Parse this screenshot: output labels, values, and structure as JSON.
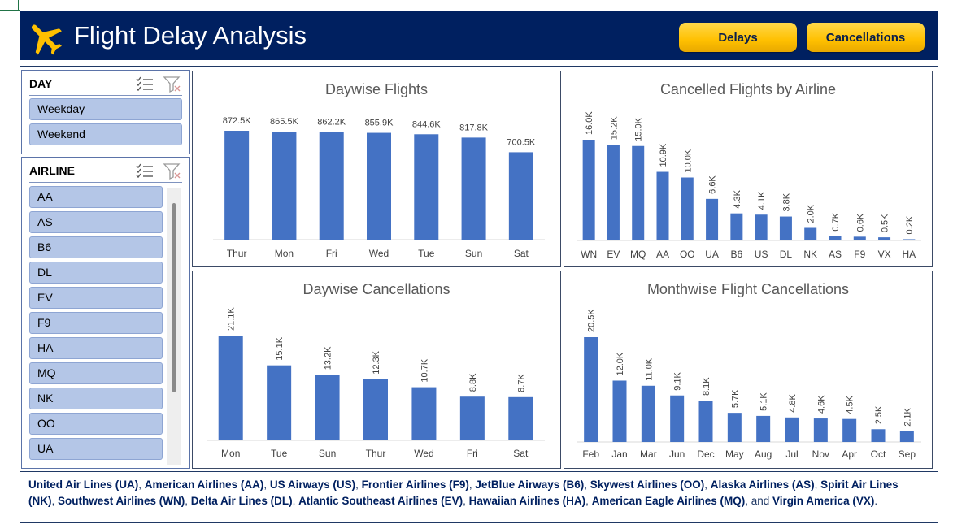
{
  "header": {
    "title": "Flight Delay Analysis",
    "logo_icon": "airplane-icon",
    "buttons": {
      "delays": "Delays",
      "cancellations": "Cancellations"
    },
    "colors": {
      "banner": "#002060",
      "button": "#ffc000",
      "plane": "#ffc000"
    }
  },
  "slicers": {
    "day": {
      "title": "DAY",
      "items": [
        "Weekday",
        "Weekend"
      ]
    },
    "airline": {
      "title": "AIRLINE",
      "items": [
        "AA",
        "AS",
        "B6",
        "DL",
        "EV",
        "F9",
        "HA",
        "MQ",
        "NK",
        "OO",
        "UA"
      ]
    }
  },
  "chart_data": [
    {
      "type": "bar",
      "title": "Daywise Flights",
      "categories": [
        "Thur",
        "Mon",
        "Fri",
        "Wed",
        "Tue",
        "Sun",
        "Sat"
      ],
      "values": [
        872.5,
        865.5,
        862.2,
        855.9,
        844.6,
        817.8,
        700.5
      ],
      "labels": [
        "872.5K",
        "865.5K",
        "862.2K",
        "855.9K",
        "844.6K",
        "817.8K",
        "700.5K"
      ],
      "ylim": [
        0,
        872.5
      ],
      "label_orientation": "horizontal",
      "bar_color": "#4472c4"
    },
    {
      "type": "bar",
      "title": "Cancelled Flights by Airline",
      "categories": [
        "WN",
        "EV",
        "MQ",
        "AA",
        "OO",
        "UA",
        "B6",
        "US",
        "DL",
        "NK",
        "AS",
        "F9",
        "VX",
        "HA"
      ],
      "values": [
        16.0,
        15.2,
        15.0,
        10.9,
        10.0,
        6.6,
        4.3,
        4.1,
        3.8,
        2.0,
        0.7,
        0.6,
        0.5,
        0.2
      ],
      "labels": [
        "16.0K",
        "15.2K",
        "15.0K",
        "10.9K",
        "10.0K",
        "6.6K",
        "4.3K",
        "4.1K",
        "3.8K",
        "2.0K",
        "0.7K",
        "0.6K",
        "0.5K",
        "0.2K"
      ],
      "ylim": [
        0,
        16.0
      ],
      "label_orientation": "vertical",
      "bar_color": "#4472c4"
    },
    {
      "type": "bar",
      "title": "Daywise Cancellations",
      "categories": [
        "Mon",
        "Tue",
        "Sun",
        "Thur",
        "Wed",
        "Fri",
        "Sat"
      ],
      "values": [
        21.1,
        15.1,
        13.2,
        12.3,
        10.7,
        8.8,
        8.7
      ],
      "labels": [
        "21.1K",
        "15.1K",
        "13.2K",
        "12.3K",
        "10.7K",
        "8.8K",
        "8.7K"
      ],
      "ylim": [
        0,
        21.1
      ],
      "label_orientation": "vertical",
      "bar_color": "#4472c4"
    },
    {
      "type": "bar",
      "title": "Monthwise Flight Cancellations",
      "categories": [
        "Feb",
        "Jan",
        "Mar",
        "Jun",
        "Dec",
        "May",
        "Aug",
        "Jul",
        "Nov",
        "Apr",
        "Oct",
        "Sep"
      ],
      "values": [
        20.5,
        12.0,
        11.0,
        9.1,
        8.1,
        5.7,
        5.1,
        4.8,
        4.6,
        4.5,
        2.5,
        2.1
      ],
      "labels": [
        "20.5K",
        "12.0K",
        "11.0K",
        "9.1K",
        "8.1K",
        "5.7K",
        "5.1K",
        "4.8K",
        "4.6K",
        "4.5K",
        "2.5K",
        "2.1K"
      ],
      "ylim": [
        0,
        20.5
      ],
      "label_orientation": "vertical",
      "bar_color": "#4472c4"
    }
  ],
  "footer": {
    "segments": [
      {
        "t": "United Air Lines (UA)",
        "b": true
      },
      {
        "t": ", ",
        "b": false
      },
      {
        "t": "American Airlines (AA)",
        "b": true
      },
      {
        "t": ", ",
        "b": false
      },
      {
        "t": "US Airways (US)",
        "b": true
      },
      {
        "t": ", ",
        "b": false
      },
      {
        "t": "Frontier Airlines (F9)",
        "b": true
      },
      {
        "t": ", ",
        "b": false
      },
      {
        "t": "JetBlue Airways (B6)",
        "b": true
      },
      {
        "t": ", ",
        "b": false
      },
      {
        "t": "Skywest Airlines (OO)",
        "b": true
      },
      {
        "t": ", ",
        "b": false
      },
      {
        "t": "Alaska Airlines (AS)",
        "b": true
      },
      {
        "t": ", ",
        "b": false
      },
      {
        "t": "Spirit Air Lines (NK)",
        "b": true
      },
      {
        "t": ", ",
        "b": false
      },
      {
        "t": "Southwest Airlines (WN)",
        "b": true
      },
      {
        "t": ", ",
        "b": false
      },
      {
        "t": "Delta Air Lines (DL)",
        "b": true
      },
      {
        "t": ", ",
        "b": false
      },
      {
        "t": "Atlantic Southeast Airlines (EV)",
        "b": true
      },
      {
        "t": ", ",
        "b": false
      },
      {
        "t": "Hawaiian Airlines (HA)",
        "b": true
      },
      {
        "t": ", ",
        "b": false
      },
      {
        "t": "American Eagle Airlines (MQ)",
        "b": true
      },
      {
        "t": ", and ",
        "b": false
      },
      {
        "t": "Virgin America (VX)",
        "b": true
      },
      {
        "t": ".",
        "b": false
      }
    ]
  }
}
